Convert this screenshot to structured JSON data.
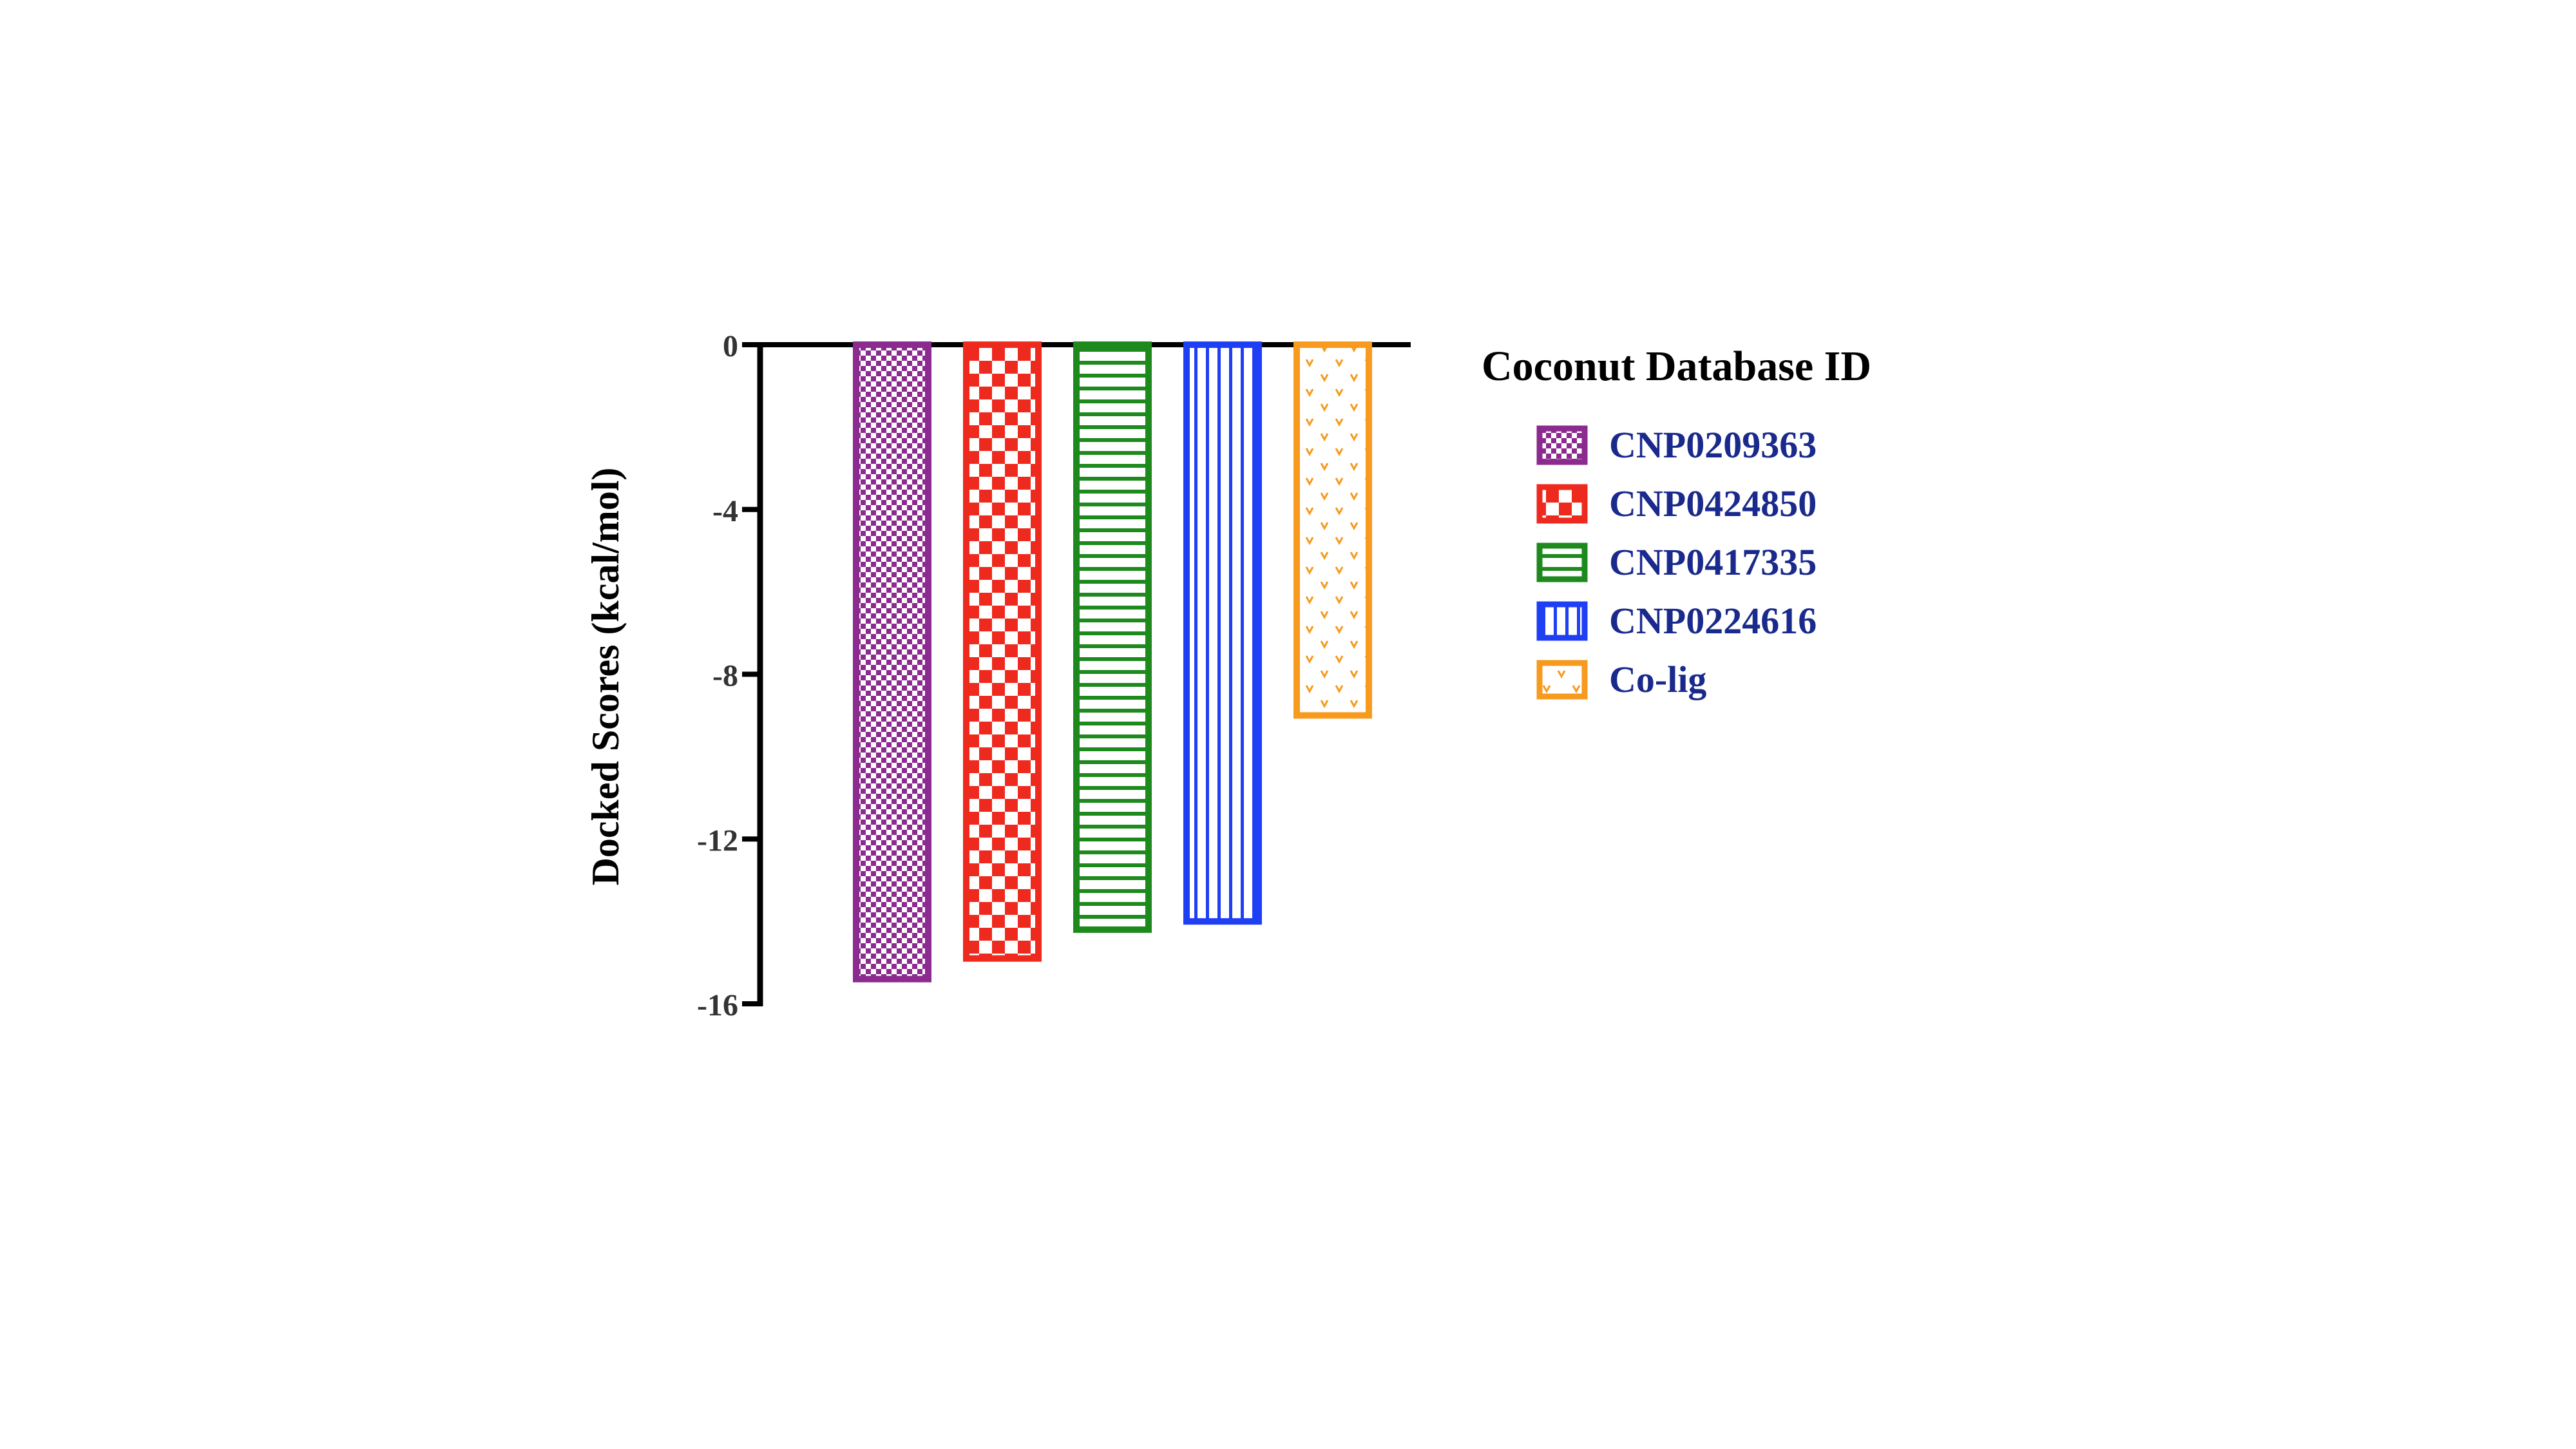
{
  "chart_data": {
    "type": "bar",
    "title": "",
    "xlabel": "",
    "ylabel": "Docked Scores (kcal/mol)",
    "ylim": [
      -16,
      0
    ],
    "yticks": [
      0,
      -4,
      -8,
      -12,
      -16
    ],
    "ytick_labels": [
      "0",
      "-4",
      "-8",
      "-12",
      "-16"
    ],
    "categories": [
      "CNP0209363",
      "CNP0424850",
      "CNP0417335",
      "CNP0224616",
      "Co-lig"
    ],
    "values": [
      -15.4,
      -14.9,
      -14.2,
      -14.0,
      -9.0
    ],
    "colors": [
      "#8B2A8F",
      "#EE2A1F",
      "#1E8A1E",
      "#1F3FF5",
      "#F79A1E"
    ],
    "patterns": [
      "fine-checker",
      "large-checker",
      "horizontal-stripes",
      "vertical-stripes",
      "dots"
    ],
    "legend": {
      "title": "Coconut Database ID",
      "position": "right",
      "text_color": "#1A2A8C",
      "entries": [
        "CNP0209363",
        "CNP0424850",
        "CNP0417335",
        "CNP0224616",
        "Co-lig"
      ]
    }
  }
}
